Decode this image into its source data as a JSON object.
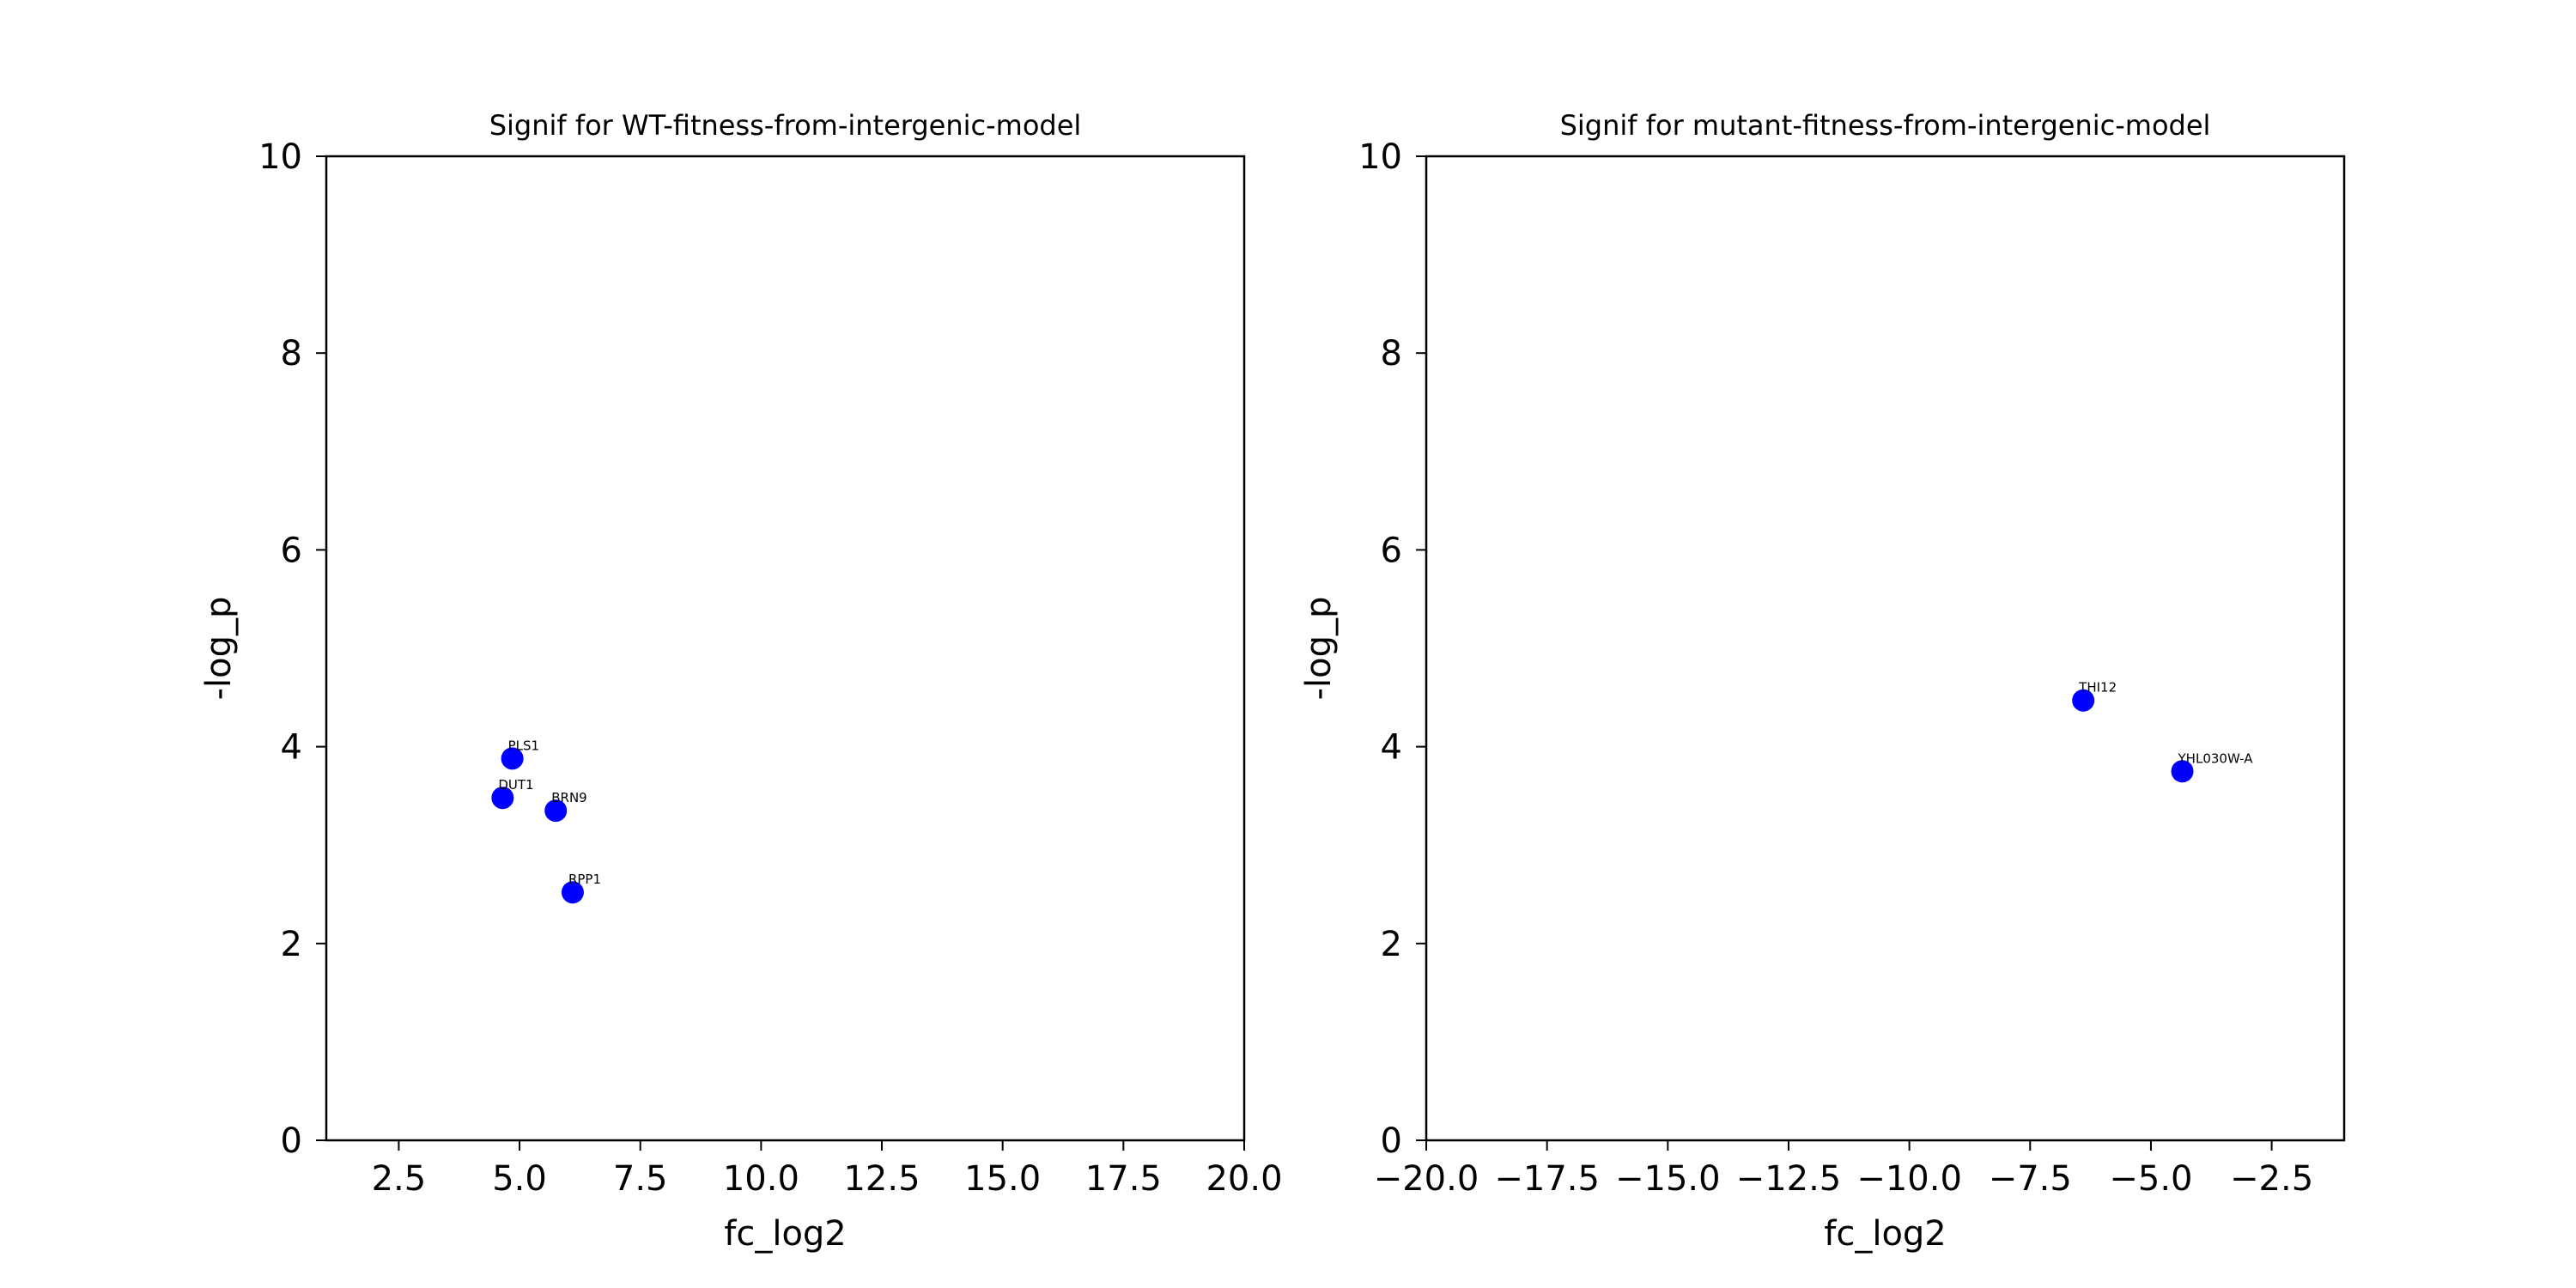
{
  "chart_data": [
    {
      "type": "scatter",
      "title": "Signif for WT-fitness-from-intergenic-model",
      "xlabel": "fc_log2",
      "ylabel": "-log_p",
      "xlim": [
        1.0,
        20.0
      ],
      "ylim": [
        0,
        10
      ],
      "xticks": [
        2.5,
        5.0,
        7.5,
        10.0,
        12.5,
        15.0,
        17.5,
        20.0
      ],
      "xtick_labels": [
        "2.5",
        "5.0",
        "7.5",
        "10.0",
        "12.5",
        "15.0",
        "17.5",
        "20.0"
      ],
      "yticks": [
        0,
        2,
        4,
        6,
        8,
        10
      ],
      "ytick_labels": [
        "0",
        "2",
        "4",
        "6",
        "8",
        "10"
      ],
      "grid": false,
      "point_color": "#0000ff",
      "points": [
        {
          "label": "PLS1",
          "x": 4.85,
          "y": 3.88
        },
        {
          "label": "DUT1",
          "x": 4.65,
          "y": 3.48
        },
        {
          "label": "BRN9",
          "x": 5.75,
          "y": 3.35
        },
        {
          "label": "RPP1",
          "x": 6.1,
          "y": 2.52
        }
      ]
    },
    {
      "type": "scatter",
      "title": "Signif for mutant-fitness-from-intergenic-model",
      "xlabel": "fc_log2",
      "ylabel": "-log_p",
      "xlim": [
        -20.0,
        -1.0
      ],
      "ylim": [
        0,
        10
      ],
      "xticks": [
        -20.0,
        -17.5,
        -15.0,
        -12.5,
        -10.0,
        -7.5,
        -5.0,
        -2.5
      ],
      "xtick_labels": [
        "−20.0",
        "−17.5",
        "−15.0",
        "−12.5",
        "−10.0",
        "−7.5",
        "−5.0",
        "−2.5"
      ],
      "yticks": [
        0,
        2,
        4,
        6,
        8,
        10
      ],
      "ytick_labels": [
        "0",
        "2",
        "4",
        "6",
        "8",
        "10"
      ],
      "grid": false,
      "point_color": "#0000ff",
      "points": [
        {
          "label": "THI12",
          "x": -6.4,
          "y": 4.47
        },
        {
          "label": "YHL030W-A",
          "x": -4.35,
          "y": 3.75
        }
      ]
    }
  ]
}
